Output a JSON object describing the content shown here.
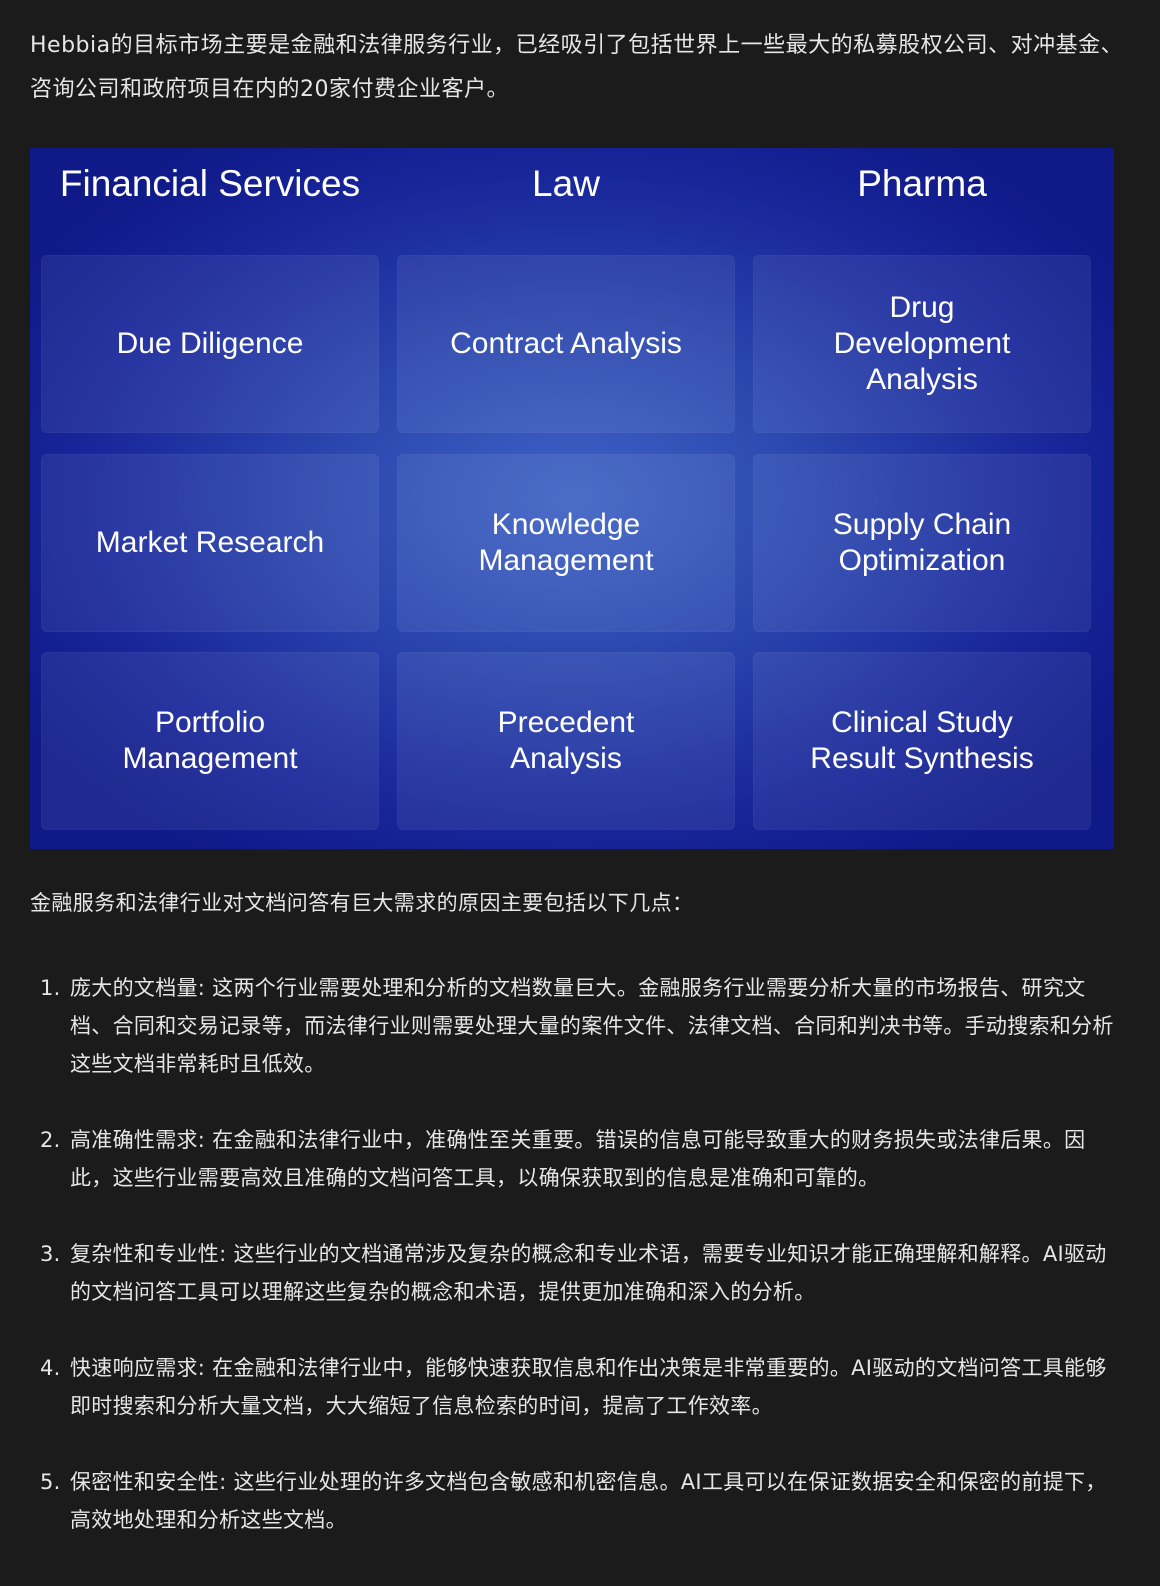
{
  "intro_text": "Hebbia的目标市场主要是金融和法律服务行业，已经吸引了包括世界上一些最大的私募股权公司、对冲基金、咨询公司和政府项目在内的20家付费企业客户。",
  "graphic": {
    "columns": [
      {
        "header": "Financial Services",
        "cells": [
          "Due Diligence",
          "Market Research",
          "Portfolio\nManagement"
        ]
      },
      {
        "header": "Law",
        "cells": [
          "Contract Analysis",
          "Knowledge\nManagement",
          "Precedent\nAnalysis"
        ]
      },
      {
        "header": "Pharma",
        "cells": [
          "Drug\nDevelopment\nAnalysis",
          "Supply Chain\nOptimization",
          "Clinical Study\nResult Synthesis"
        ]
      }
    ],
    "colors": {
      "center": "#3e62c4",
      "edge": "#0f1987"
    }
  },
  "lead_text": "金融服务和法律行业对文档问答有巨大需求的原因主要包括以下几点：",
  "reasons": [
    {
      "num": "1.",
      "text": "庞大的文档量: 这两个行业需要处理和分析的文档数量巨大。金融服务行业需要分析大量的市场报告、研究文档、合同和交易记录等，而法律行业则需要处理大量的案件文件、法律文档、合同和判决书等。手动搜索和分析这些文档非常耗时且低效。"
    },
    {
      "num": "2.",
      "text": "高准确性需求: 在金融和法律行业中，准确性至关重要。错误的信息可能导致重大的财务损失或法律后果。因此，这些行业需要高效且准确的文档问答工具，以确保获取到的信息是准确和可靠的。"
    },
    {
      "num": "3.",
      "text": "复杂性和专业性: 这些行业的文档通常涉及复杂的概念和专业术语，需要专业知识才能正确理解和解释。AI驱动的文档问答工具可以理解这些复杂的概念和术语，提供更加准确和深入的分析。"
    },
    {
      "num": "4.",
      "text": "快速响应需求: 在金融和法律行业中，能够快速获取信息和作出决策是非常重要的。AI驱动的文档问答工具能够即时搜索和分析大量文档，大大缩短了信息检索的时间，提高了工作效率。"
    },
    {
      "num": "5.",
      "text": "保密性和安全性: 这些行业处理的许多文档包含敏感和机密信息。AI工具可以在保证数据安全和保密的前提下，高效地处理和分析这些文档。"
    }
  ]
}
